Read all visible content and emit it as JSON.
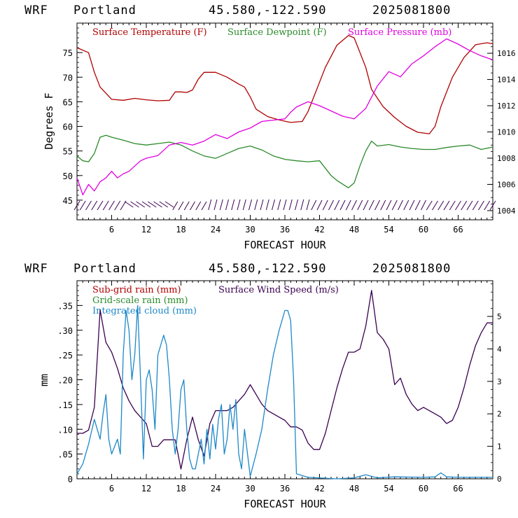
{
  "panels": [
    {
      "header": {
        "model": "WRF",
        "location": "Portland",
        "coords": "45.580,-122.590",
        "run": "2025081800"
      },
      "xlabel": "FORECAST HOUR",
      "ylabel_left": "Degrees F",
      "xticks": [
        "6",
        "12",
        "18",
        "24",
        "30",
        "36",
        "42",
        "48",
        "54",
        "60",
        "66"
      ],
      "yticks_left": [
        "45",
        "50",
        "55",
        "60",
        "65",
        "70",
        "75"
      ],
      "yticks_right": [
        "1004",
        "1006",
        "1008",
        "1010",
        "1012",
        "1014",
        "1016"
      ],
      "legend": [
        {
          "label": "Surface Temperature (F)",
          "color": "#b00000"
        },
        {
          "label": "Surface Dewpoint (F)",
          "color": "#2a8a2a"
        },
        {
          "label": "Surface Pressure (mb)",
          "color": "#e000e0"
        }
      ]
    },
    {
      "header": {
        "model": "WRF",
        "location": "Portland",
        "coords": "45.580,-122.590",
        "run": "2025081800"
      },
      "xlabel": "FORECAST HOUR",
      "ylabel_left": "mm",
      "xticks": [
        "6",
        "12",
        "18",
        "24",
        "30",
        "36",
        "42",
        "48",
        "54",
        "60",
        "66"
      ],
      "yticks_left": [
        "0",
        ".05",
        ".10",
        ".15",
        ".20",
        ".25",
        ".30",
        ".35"
      ],
      "yticks_right": [
        "0",
        "1",
        "2",
        "3",
        "4",
        "5"
      ],
      "legend": [
        {
          "label": "Sub-grid rain (mm)",
          "color": "#b00000"
        },
        {
          "label": "Surface Wind Speed (m/s)",
          "color": "#3a0050"
        },
        {
          "label": "Grid-scale rain (mm)",
          "color": "#2a8a2a"
        },
        {
          "label": "Integrated cloud (mm)",
          "color": "#1e88c8"
        }
      ]
    }
  ],
  "chart_data": [
    {
      "type": "line",
      "xlabel": "FORECAST HOUR",
      "ylabel": "Degrees F",
      "ylim": [
        41,
        81
      ],
      "y2lim": [
        1003.3,
        1018.3
      ],
      "xlim": [
        0,
        72
      ],
      "series": [
        {
          "name": "Surface Temperature (F)",
          "color": "#b00000",
          "axis": "left",
          "x": [
            0,
            2,
            3,
            4,
            6,
            8,
            10,
            12,
            14,
            16,
            17,
            18,
            19,
            20,
            21,
            22,
            24,
            26,
            28,
            29,
            30,
            31,
            33,
            35,
            37,
            39,
            40,
            41,
            43,
            45,
            47,
            48,
            50,
            51,
            53,
            55,
            57,
            59,
            61,
            62,
            63,
            65,
            67,
            69,
            71,
            72
          ],
          "y": [
            76,
            75,
            71,
            68,
            65.5,
            65.3,
            65.7,
            65.4,
            65.2,
            65.3,
            67,
            67,
            66.9,
            67.4,
            69.6,
            71,
            71,
            70,
            68.6,
            68,
            66,
            63.5,
            62,
            61.3,
            60.8,
            61,
            63,
            66,
            72,
            76.5,
            78.5,
            78,
            72,
            67.5,
            64,
            61.8,
            60,
            58.8,
            58.5,
            60,
            64,
            70,
            74,
            76.6,
            77,
            76.8
          ]
        },
        {
          "name": "Surface Dewpoint (F)",
          "color": "#2a8a2a",
          "axis": "left",
          "x": [
            0,
            1,
            2,
            3,
            4,
            5,
            6,
            8,
            10,
            12,
            14,
            16,
            18,
            20,
            22,
            24,
            26,
            28,
            30,
            32,
            34,
            36,
            38,
            40,
            42,
            44,
            45,
            47,
            48,
            49,
            50,
            51,
            52,
            54,
            56,
            58,
            60,
            62,
            64,
            66,
            68,
            70,
            72
          ],
          "y": [
            54,
            53,
            52.8,
            54.5,
            57.8,
            58.2,
            57.8,
            57.2,
            56.5,
            56.2,
            56.5,
            56.8,
            56.2,
            55,
            54,
            53.5,
            54.5,
            55.5,
            56,
            55.2,
            54,
            53.3,
            53,
            52.8,
            53,
            50,
            49,
            47.5,
            48.5,
            52,
            55,
            57,
            56,
            56.3,
            55.8,
            55.5,
            55.3,
            55.3,
            55.7,
            56,
            56.2,
            55.3,
            55.8
          ]
        },
        {
          "name": "Surface Pressure (mb)",
          "color": "#e000e0",
          "axis": "right",
          "x": [
            0,
            1,
            2,
            3,
            4,
            5,
            6,
            7,
            8,
            9,
            10,
            11,
            12,
            14,
            16,
            18,
            20,
            22,
            24,
            26,
            28,
            30,
            32,
            34,
            36,
            37,
            38,
            40,
            42,
            44,
            46,
            48,
            50,
            52,
            54,
            56,
            58,
            60,
            62,
            64,
            66,
            68,
            70,
            72
          ],
          "y": [
            1006.5,
            1005.2,
            1006,
            1005.5,
            1006.2,
            1006.5,
            1007,
            1006.5,
            1006.8,
            1007,
            1007.4,
            1007.8,
            1008,
            1008.2,
            1009,
            1009.2,
            1009,
            1009.3,
            1009.8,
            1009.5,
            1010,
            1010.3,
            1010.8,
            1010.9,
            1011,
            1011.5,
            1011.9,
            1012.3,
            1012,
            1011.6,
            1011.2,
            1011,
            1011.8,
            1013.5,
            1014.6,
            1014.2,
            1015.2,
            1015.8,
            1016.5,
            1017.1,
            1016.7,
            1016.2,
            1015.8,
            1015.5
          ]
        }
      ],
      "wind_barbs": true
    },
    {
      "type": "line",
      "xlabel": "FORECAST HOUR",
      "ylabel": "mm",
      "ylim": [
        0,
        0.4
      ],
      "y2lim": [
        0,
        6.1
      ],
      "xlim": [
        0,
        72
      ],
      "series": [
        {
          "name": "Surface Wind Speed (m/s)",
          "color": "#3a0050",
          "axis": "right",
          "x": [
            0,
            1,
            2,
            3,
            4,
            5,
            6,
            7,
            8,
            9,
            10,
            11,
            12,
            13,
            14,
            15,
            16,
            17,
            18,
            19,
            20,
            21,
            22,
            23,
            24,
            25,
            26,
            27,
            28,
            29,
            30,
            31,
            32,
            33,
            34,
            35,
            36,
            37,
            38,
            39,
            40,
            41,
            42,
            43,
            44,
            45,
            46,
            47,
            48,
            49,
            50,
            51,
            52,
            53,
            54,
            55,
            56,
            57,
            58,
            59,
            60,
            61,
            62,
            63,
            64,
            65,
            66,
            67,
            68,
            69,
            70,
            71,
            72
          ],
          "y": [
            1.4,
            1.4,
            1.5,
            2.2,
            5.2,
            4.2,
            3.9,
            3.4,
            2.8,
            2.4,
            2.1,
            1.9,
            1.7,
            1,
            1,
            1.2,
            1.2,
            1.2,
            0.3,
            1.2,
            1.9,
            1.2,
            0.7,
            1.7,
            2.1,
            2.1,
            2.1,
            2.2,
            2.4,
            2.6,
            2.9,
            2.6,
            2.3,
            2.1,
            2.0,
            1.9,
            1.8,
            1.6,
            1.6,
            1.5,
            1.1,
            0.9,
            0.9,
            1.4,
            2.1,
            2.8,
            3.4,
            3.9,
            3.9,
            4.0,
            4.7,
            5.8,
            4.5,
            4.3,
            4.0,
            2.9,
            3.1,
            2.6,
            2.3,
            2.1,
            2.2,
            2.1,
            2.0,
            1.9,
            1.7,
            1.8,
            2.2,
            2.8,
            3.5,
            4.1,
            4.5,
            4.8,
            4.8
          ]
        },
        {
          "name": "Integrated cloud (mm)",
          "color": "#1e88c8",
          "axis": "left",
          "x": [
            0,
            1,
            2,
            3,
            4,
            4.5,
            5,
            5.5,
            6,
            7,
            7.5,
            8,
            8.5,
            9,
            9.5,
            10,
            10.5,
            11,
            11.5,
            12,
            12.5,
            13,
            13.5,
            14,
            15,
            15.5,
            16,
            16.5,
            17,
            17.5,
            18,
            18.5,
            19,
            19.5,
            20,
            20.5,
            21,
            21.5,
            22,
            22.5,
            23,
            23.5,
            24,
            24.5,
            25,
            25.5,
            26,
            26.5,
            27,
            27.5,
            28,
            28.5,
            29,
            30,
            31,
            32,
            33,
            34,
            35,
            36,
            36.5,
            37,
            37.5,
            38,
            40,
            45,
            48,
            50,
            52,
            55,
            60,
            62,
            63,
            64,
            66,
            72
          ],
          "y": [
            0.01,
            0.03,
            0.07,
            0.12,
            0.08,
            0.13,
            0.17,
            0.08,
            0.05,
            0.08,
            0.05,
            0.25,
            0.34,
            0.3,
            0.2,
            0.25,
            0.35,
            0.2,
            0.04,
            0.2,
            0.22,
            0.18,
            0.1,
            0.25,
            0.29,
            0.27,
            0.2,
            0.1,
            0.05,
            0.1,
            0.18,
            0.2,
            0.1,
            0.04,
            0.02,
            0.02,
            0.05,
            0.08,
            0.03,
            0.1,
            0.04,
            0.11,
            0.06,
            0.12,
            0.15,
            0.05,
            0.08,
            0.15,
            0.1,
            0.16,
            0.05,
            0.02,
            0.1,
            0.005,
            0.05,
            0.1,
            0.18,
            0.25,
            0.3,
            0.34,
            0.34,
            0.32,
            0.2,
            0.01,
            0.003,
            0.0,
            0.002,
            0.008,
            0.002,
            0.004,
            0.003,
            0.004,
            0.012,
            0.004,
            0.003,
            0.003
          ]
        }
      ]
    }
  ]
}
